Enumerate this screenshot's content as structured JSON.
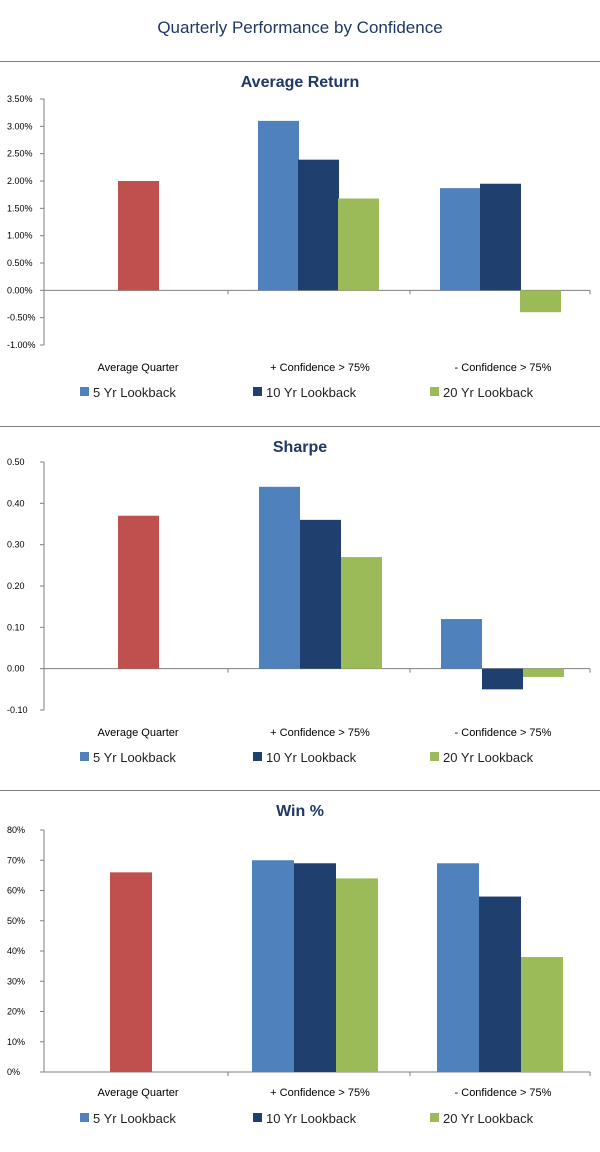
{
  "page_title": "Quarterly Performance by Confidence",
  "colors": {
    "average_quarter": "#c0504d",
    "s5": "#4f81bd",
    "s10": "#1f3f6e",
    "s20": "#9bbb59",
    "title": "#1f3864"
  },
  "chart_data": [
    {
      "type": "bar",
      "title": "Average Return",
      "categories": [
        "Average Quarter",
        "+ Confidence > 75%",
        "- Confidence > 75%"
      ],
      "series": [
        {
          "name": "5 Yr Lookback",
          "values": [
            null,
            3.1,
            1.87
          ]
        },
        {
          "name": "10 Yr Lookback",
          "values": [
            null,
            2.39,
            1.95
          ]
        },
        {
          "name": "20 Yr Lookback",
          "values": [
            null,
            1.68,
            -0.4
          ]
        }
      ],
      "baseline": {
        "category": "Average Quarter",
        "value": 2.0
      },
      "ylim": [
        -1.0,
        3.5
      ],
      "y_ticks": [
        -1.0,
        -0.5,
        0.0,
        0.5,
        1.0,
        1.5,
        2.0,
        2.5,
        3.0,
        3.5
      ],
      "y_tick_labels": [
        "-1.00%",
        "-0.50%",
        "0.00%",
        "0.50%",
        "1.00%",
        "1.50%",
        "2.00%",
        "2.50%",
        "3.00%",
        "3.50%"
      ],
      "legend_position": "bottom",
      "grid": false
    },
    {
      "type": "bar",
      "title": "Sharpe",
      "categories": [
        "Average Quarter",
        "+ Confidence > 75%",
        "- Confidence > 75%"
      ],
      "series": [
        {
          "name": "5 Yr Lookback",
          "values": [
            null,
            0.44,
            0.12
          ]
        },
        {
          "name": "10 Yr Lookback",
          "values": [
            null,
            0.36,
            -0.05
          ]
        },
        {
          "name": "20 Yr Lookback",
          "values": [
            null,
            0.27,
            -0.02
          ]
        }
      ],
      "baseline": {
        "category": "Average Quarter",
        "value": 0.37
      },
      "ylim": [
        -0.1,
        0.5
      ],
      "y_ticks": [
        -0.1,
        0.0,
        0.1,
        0.2,
        0.3,
        0.4,
        0.5
      ],
      "y_tick_labels": [
        "-0.10",
        "0.00",
        "0.10",
        "0.20",
        "0.30",
        "0.40",
        "0.50"
      ],
      "legend_position": "bottom",
      "grid": false
    },
    {
      "type": "bar",
      "title": "Win %",
      "categories": [
        "Average Quarter",
        "+ Confidence > 75%",
        "- Confidence > 75%"
      ],
      "series": [
        {
          "name": "5 Yr Lookback",
          "values": [
            null,
            70,
            69
          ]
        },
        {
          "name": "10 Yr Lookback",
          "values": [
            null,
            69,
            58
          ]
        },
        {
          "name": "20 Yr Lookback",
          "values": [
            null,
            64,
            38
          ]
        }
      ],
      "baseline": {
        "category": "Average Quarter",
        "value": 66
      },
      "ylim": [
        0,
        80
      ],
      "y_ticks": [
        0,
        10,
        20,
        30,
        40,
        50,
        60,
        70,
        80
      ],
      "y_tick_labels": [
        "0%",
        "10%",
        "20%",
        "30%",
        "40%",
        "50%",
        "60%",
        "70%",
        "80%"
      ],
      "legend_position": "bottom",
      "grid": false
    }
  ]
}
